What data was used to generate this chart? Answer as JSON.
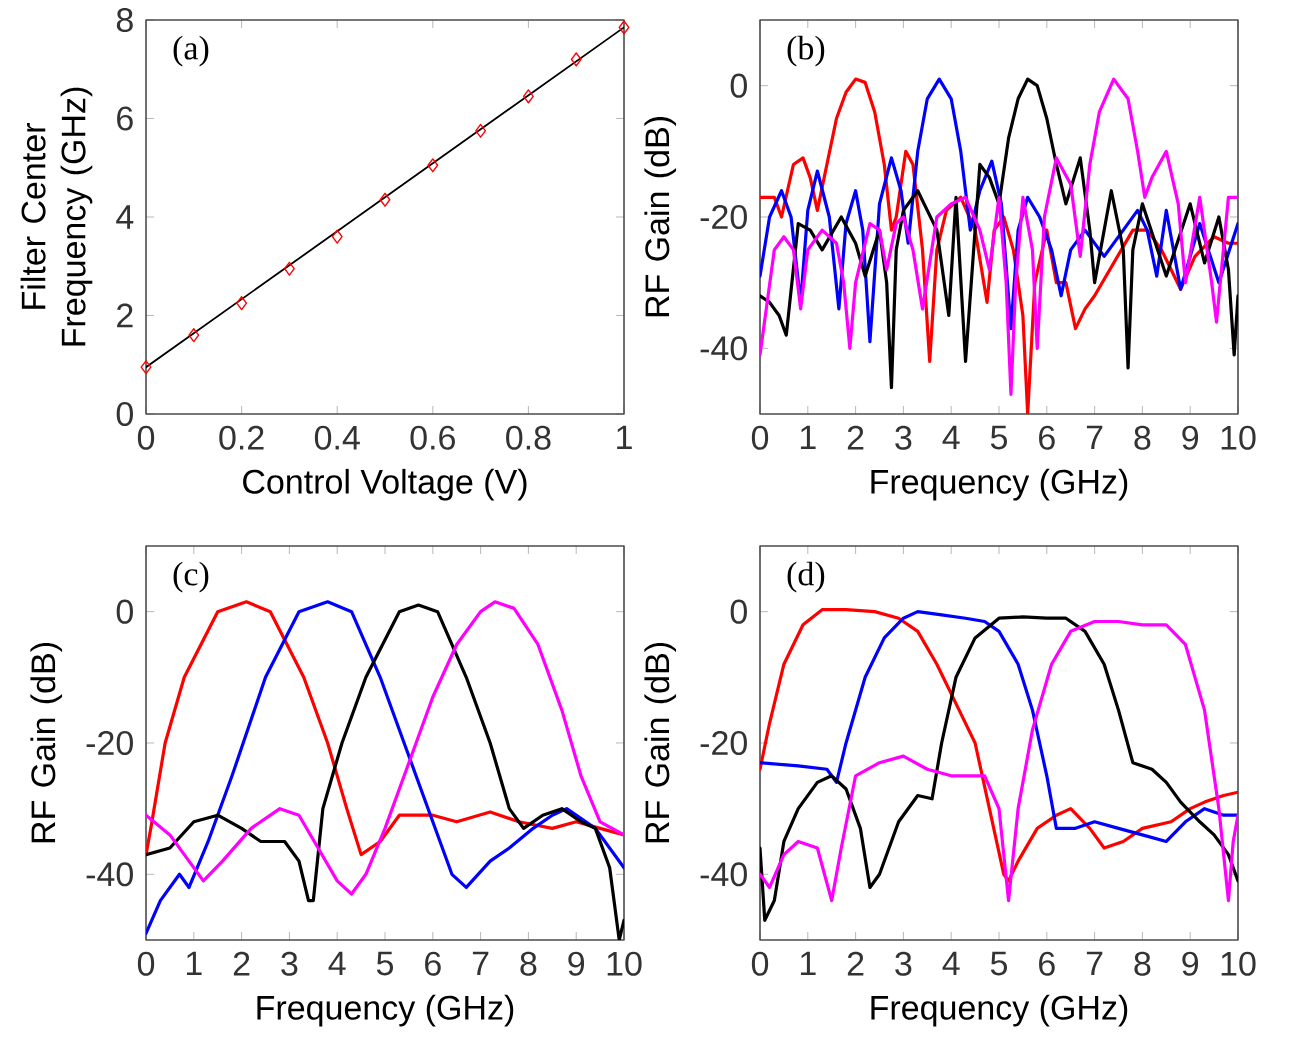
{
  "chart_data": [
    {
      "type": "scatter",
      "xlabel": "Control Voltage (V)",
      "ylabel": "Filter Center Frequency (GHz)",
      "annotations": [
        "(a)"
      ],
      "xlim": [
        0,
        1
      ],
      "ylim": [
        0,
        8
      ],
      "xticks": [
        0,
        0.2,
        0.4,
        0.6,
        0.8,
        1
      ],
      "yticks": [
        0,
        2,
        4,
        6,
        8
      ],
      "series": [
        {
          "type": "line",
          "color": "#000000",
          "x": [
            0,
            1
          ],
          "values": [
            0.95,
            7.85
          ]
        },
        {
          "type": "scatter",
          "color": "#ff0000",
          "marker": "diamond",
          "x": [
            0,
            0.1,
            0.2,
            0.3,
            0.4,
            0.5,
            0.6,
            0.7,
            0.8,
            0.9,
            1.0
          ],
          "values": [
            0.95,
            1.6,
            2.25,
            2.95,
            3.6,
            4.35,
            5.05,
            5.75,
            6.45,
            7.2,
            7.85
          ]
        }
      ]
    },
    {
      "type": "line",
      "xlabel": "Frequency (GHz)",
      "ylabel": "RF Gain (dB)",
      "annotations": [
        "(b)"
      ],
      "xlim": [
        0,
        10
      ],
      "ylim": [
        -50,
        10
      ],
      "xticks": [
        0,
        1,
        2,
        3,
        4,
        5,
        6,
        7,
        8,
        9,
        10
      ],
      "yticks": [
        -40,
        -20,
        0
      ],
      "series": [
        {
          "color": "#ff0000",
          "x": [
            0,
            0.3,
            0.45,
            0.7,
            0.9,
            1.05,
            1.2,
            1.4,
            1.6,
            1.8,
            2.0,
            2.2,
            2.4,
            2.6,
            2.75,
            2.85,
            3.05,
            3.2,
            3.4,
            3.55,
            3.7,
            3.9,
            4.2,
            4.5,
            4.75,
            4.9,
            5.1,
            5.3,
            5.5,
            5.6,
            5.75,
            6.0,
            6.2,
            6.4,
            6.6,
            6.8,
            7.0,
            7.4,
            7.8,
            8.1,
            8.4,
            8.8,
            9.1,
            9.5,
            9.8,
            10
          ],
          "values": [
            -17,
            -17,
            -20,
            -12,
            -11,
            -14,
            -19,
            -12,
            -5,
            -1,
            1,
            0.5,
            -4,
            -12,
            -22,
            -20,
            -10,
            -12,
            -25,
            -42,
            -25,
            -19,
            -17,
            -22,
            -33,
            -22,
            -20,
            -25,
            -35,
            -50,
            -30,
            -22,
            -30,
            -30,
            -37,
            -34,
            -32,
            -27,
            -22,
            -22,
            -25,
            -31,
            -26,
            -23,
            -24,
            -24
          ]
        },
        {
          "color": "#0000ff",
          "x": [
            0,
            0.2,
            0.45,
            0.65,
            0.85,
            1.0,
            1.2,
            1.45,
            1.65,
            1.8,
            2.0,
            2.15,
            2.3,
            2.5,
            2.75,
            2.95,
            3.1,
            3.3,
            3.5,
            3.75,
            4.0,
            4.2,
            4.4,
            4.6,
            4.85,
            5.05,
            5.25,
            5.4,
            5.6,
            5.85,
            6.1,
            6.3,
            6.5,
            6.8,
            7.2,
            7.6,
            7.9,
            8.1,
            8.3,
            8.5,
            8.8,
            9.2,
            9.6,
            10
          ],
          "values": [
            -29,
            -20,
            -16,
            -20,
            -33,
            -19,
            -13,
            -20,
            -34,
            -21,
            -16,
            -22,
            -39,
            -18,
            -11,
            -16,
            -24,
            -10,
            -2,
            1,
            -2,
            -10,
            -22,
            -16,
            -11.5,
            -18,
            -37,
            -22,
            -17,
            -20,
            -25,
            -32,
            -25,
            -22,
            -26,
            -22,
            -19,
            -22,
            -29,
            -19,
            -31,
            -21,
            -30,
            -21
          ]
        },
        {
          "color": "#000000",
          "x": [
            0,
            0.2,
            0.4,
            0.55,
            0.8,
            1.05,
            1.3,
            1.7,
            2.0,
            2.2,
            2.5,
            2.65,
            2.75,
            2.85,
            3.0,
            3.3,
            3.7,
            3.95,
            4.1,
            4.3,
            4.6,
            4.8,
            5.0,
            5.2,
            5.4,
            5.6,
            5.8,
            6.0,
            6.2,
            6.4,
            6.7,
            6.9,
            7.0,
            7.35,
            7.6,
            7.7,
            7.8,
            8.0,
            8.5,
            9.0,
            9.3,
            9.6,
            9.8,
            9.92,
            10
          ],
          "values": [
            -32,
            -33,
            -35,
            -38,
            -21,
            -22,
            -25,
            -20,
            -24,
            -29,
            -22,
            -30,
            -46,
            -25,
            -19,
            -16,
            -22,
            -35,
            -17,
            -42,
            -12,
            -14,
            -18,
            -8,
            -2,
            1,
            0,
            -5,
            -12,
            -18,
            -11,
            -22,
            -30,
            -16,
            -25,
            -43,
            -25,
            -18,
            -29,
            -18,
            -27,
            -20,
            -28,
            -41,
            -32
          ]
        },
        {
          "color": "#ff00ff",
          "x": [
            0,
            0.3,
            0.5,
            0.7,
            0.85,
            1.0,
            1.3,
            1.6,
            1.75,
            1.88,
            2.0,
            2.3,
            2.5,
            2.65,
            2.85,
            3.0,
            3.2,
            3.4,
            3.7,
            4.0,
            4.3,
            4.6,
            4.8,
            5.0,
            5.15,
            5.25,
            5.35,
            5.5,
            5.7,
            5.8,
            5.95,
            6.2,
            6.5,
            6.7,
            6.9,
            7.1,
            7.4,
            7.7,
            7.9,
            8.05,
            8.2,
            8.5,
            8.75,
            8.9,
            9.2,
            9.45,
            9.55,
            9.8,
            10
          ],
          "values": [
            -41,
            -25,
            -23,
            -25,
            -34,
            -25,
            -22,
            -24,
            -30,
            -40,
            -30,
            -21,
            -22,
            -28,
            -21,
            -20,
            -25,
            -34,
            -20,
            -18,
            -17,
            -22,
            -28,
            -17,
            -30,
            -47,
            -30,
            -17,
            -25,
            -40,
            -20,
            -11,
            -15,
            -26,
            -12,
            -4,
            1,
            -2,
            -10,
            -17,
            -14,
            -10,
            -18,
            -30,
            -17,
            -30,
            -36,
            -17,
            -17
          ]
        }
      ]
    },
    {
      "type": "line",
      "xlabel": "Frequency (GHz)",
      "ylabel": "RF Gain (dB)",
      "annotations": [
        "(c)"
      ],
      "xlim": [
        0,
        10
      ],
      "ylim": [
        -50,
        10
      ],
      "xticks": [
        0,
        1,
        2,
        3,
        4,
        5,
        6,
        7,
        8,
        9,
        10
      ],
      "yticks": [
        -40,
        -20,
        0
      ],
      "series": [
        {
          "color": "#ff0000",
          "x": [
            0,
            0.1,
            0.4,
            0.8,
            1.5,
            2.1,
            2.6,
            3.3,
            3.8,
            4.2,
            4.5,
            4.9,
            5.3,
            6.0,
            6.5,
            7.2,
            7.8,
            8.5,
            9.0,
            9.5,
            10
          ],
          "values": [
            -37,
            -33,
            -20,
            -10,
            0,
            1.5,
            0,
            -10,
            -20,
            -30,
            -37,
            -35,
            -31,
            -31,
            -32,
            -30.5,
            -32,
            -33,
            -32,
            -33,
            -34
          ]
        },
        {
          "color": "#0000ff",
          "x": [
            0,
            0.3,
            0.7,
            0.9,
            1.3,
            1.8,
            2.5,
            3.2,
            3.8,
            4.3,
            4.9,
            5.4,
            5.9,
            6.4,
            6.7,
            7.2,
            7.6,
            8.1,
            8.5,
            8.8,
            9.4,
            10
          ],
          "values": [
            -49,
            -44,
            -40,
            -42,
            -35,
            -25,
            -10,
            0,
            1.5,
            0,
            -10,
            -20,
            -30,
            -40,
            -42,
            -38,
            -36,
            -33,
            -31,
            -30,
            -33,
            -39
          ]
        },
        {
          "color": "#000000",
          "x": [
            0,
            0.5,
            1.0,
            1.5,
            2.0,
            2.4,
            2.9,
            3.2,
            3.4,
            3.5,
            3.7,
            4.1,
            4.6,
            5.3,
            5.7,
            6.1,
            6.7,
            7.2,
            7.6,
            7.9,
            8.3,
            8.7,
            9.1,
            9.4,
            9.7,
            9.9,
            10
          ],
          "values": [
            -37,
            -36,
            -32,
            -31,
            -33,
            -35,
            -35,
            -38,
            -44,
            -44,
            -30,
            -20,
            -10,
            0,
            1,
            0,
            -10,
            -20,
            -30,
            -33,
            -31,
            -30,
            -32,
            -33,
            -39,
            -50,
            -47
          ]
        },
        {
          "color": "#ff00ff",
          "x": [
            0,
            0.5,
            0.9,
            1.2,
            1.6,
            2.2,
            2.8,
            3.2,
            3.6,
            4.0,
            4.3,
            4.6,
            5.0,
            5.5,
            6.0,
            6.5,
            7.0,
            7.3,
            7.7,
            8.2,
            8.7,
            9.1,
            9.5,
            10
          ],
          "values": [
            -31,
            -34,
            -38,
            -41,
            -38,
            -33,
            -30,
            -31,
            -36,
            -41,
            -43,
            -40,
            -33,
            -23,
            -13,
            -5,
            0,
            1.5,
            0.5,
            -5,
            -15,
            -25,
            -32,
            -34
          ]
        }
      ]
    },
    {
      "type": "line",
      "xlabel": "Frequency (GHz)",
      "ylabel": "RF Gain (dB)",
      "annotations": [
        "(d)"
      ],
      "xlim": [
        0,
        10
      ],
      "ylim": [
        -50,
        10
      ],
      "xticks": [
        0,
        1,
        2,
        3,
        4,
        5,
        6,
        7,
        8,
        9,
        10
      ],
      "yticks": [
        -40,
        -20,
        0
      ],
      "series": [
        {
          "color": "#ff0000",
          "x": [
            0,
            0.2,
            0.5,
            0.9,
            1.3,
            1.8,
            2.4,
            2.9,
            3.3,
            3.7,
            4.1,
            4.5,
            4.8,
            5.1,
            5.2,
            5.4,
            5.8,
            6.2,
            6.5,
            6.9,
            7.2,
            7.6,
            8.0,
            8.6,
            9.0,
            9.3,
            9.7,
            10
          ],
          "values": [
            -24,
            -17,
            -8,
            -2,
            0.3,
            0.3,
            0,
            -1,
            -3,
            -8,
            -14,
            -20,
            -30,
            -40,
            -41,
            -38,
            -33,
            -31,
            -30,
            -33,
            -36,
            -35,
            -33,
            -32,
            -30,
            -29,
            -28,
            -27.5
          ]
        },
        {
          "color": "#0000ff",
          "x": [
            0,
            0.8,
            1.4,
            1.6,
            1.8,
            2.2,
            2.6,
            3.0,
            3.3,
            3.8,
            4.3,
            4.7,
            5.0,
            5.4,
            5.7,
            6.0,
            6.2,
            6.6,
            7.0,
            7.5,
            8.0,
            8.5,
            8.9,
            9.3,
            9.7,
            10
          ],
          "values": [
            -23,
            -23.5,
            -24,
            -26,
            -20,
            -10,
            -4,
            -1,
            0,
            -0.5,
            -1,
            -1.5,
            -3,
            -8,
            -15,
            -25,
            -33,
            -33,
            -32,
            -33,
            -34,
            -35,
            -32,
            -30,
            -31,
            -31
          ]
        },
        {
          "color": "#000000",
          "x": [
            0,
            0.1,
            0.3,
            0.5,
            0.8,
            1.2,
            1.5,
            1.8,
            2.1,
            2.3,
            2.5,
            2.9,
            3.3,
            3.6,
            3.8,
            4.1,
            4.5,
            5.0,
            5.5,
            6.0,
            6.4,
            6.8,
            7.2,
            7.5,
            7.8,
            8.2,
            8.5,
            8.8,
            9.2,
            9.5,
            9.8,
            10
          ],
          "values": [
            -36,
            -47,
            -44,
            -35,
            -30,
            -26,
            -25,
            -27,
            -33,
            -42,
            -40,
            -32,
            -28,
            -28.5,
            -20,
            -10,
            -4,
            -1,
            -0.8,
            -1,
            -1,
            -3,
            -8,
            -15,
            -23,
            -24,
            -26,
            -29,
            -32,
            -34,
            -37,
            -41
          ]
        },
        {
          "color": "#ff00ff",
          "x": [
            0,
            0.2,
            0.5,
            0.8,
            1.2,
            1.5,
            1.7,
            2.0,
            2.5,
            3.0,
            3.5,
            4.0,
            4.7,
            5.0,
            5.2,
            5.4,
            5.7,
            6.1,
            6.5,
            7.0,
            7.5,
            8.0,
            8.5,
            8.9,
            9.3,
            9.6,
            9.8,
            9.9,
            10
          ],
          "values": [
            -40,
            -42,
            -37,
            -35,
            -36,
            -44,
            -36,
            -25,
            -23,
            -22,
            -24,
            -25,
            -25,
            -30,
            -44,
            -30,
            -18,
            -8,
            -3,
            -1.5,
            -1.5,
            -2,
            -2,
            -5,
            -15,
            -30,
            -44,
            -35,
            -31
          ]
        }
      ]
    }
  ]
}
